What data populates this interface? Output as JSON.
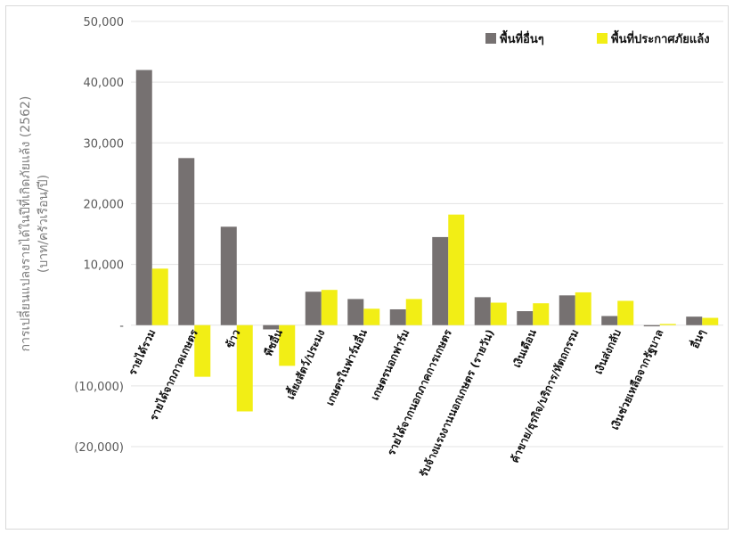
{
  "chart_data": {
    "type": "bar",
    "title": "",
    "ylabel": "การเปลี่ยนแปลงรายได้ในปีที่เกิดภัยแล้ง (2562)",
    "ylabel2": "(บาท/ครัวเรือน/ปี)",
    "ylim": [
      -20000,
      50000
    ],
    "yticks": [
      "(20,000)",
      "(10,000)",
      "-",
      "10,000",
      "20,000",
      "30,000",
      "40,000",
      "50,000"
    ],
    "ytick_values": [
      -20000,
      -10000,
      0,
      10000,
      20000,
      30000,
      40000,
      50000
    ],
    "grid": true,
    "legend_position": "top-right",
    "categories": [
      "รายได้รวม",
      "รายได้จากภาคเกษตร",
      "ข้าว",
      "พืชอื่น",
      "เลี้ยงสัตว์/ประมง",
      "เกษตรในฟาร์มอื่น",
      "เกษตรนอกฟาร์ม",
      "รายได้จากนอกภาคการเกษตร",
      "รับจ้างแรงงานนอกเกษตร (รายวัน)",
      "เงินเดือน",
      "ค้าขาย/ธุรกิจ/บริการ/หัตถกรรม",
      "เงินส่งกลับ",
      "เงินช่วยเหลือจากรัฐบาล",
      "อื่นๆ"
    ],
    "series": [
      {
        "name": "พื้นที่อื่นๆ",
        "color": "#767171",
        "values": [
          42000,
          27500,
          16200,
          -700,
          5500,
          4300,
          2600,
          14500,
          4600,
          2300,
          4900,
          1500,
          -200,
          1400
        ]
      },
      {
        "name": "พื้นที่ประกาศภัยแล้ง",
        "color": "#f2ee15",
        "values": [
          9300,
          -8500,
          -14200,
          -6700,
          5800,
          2700,
          4300,
          18200,
          3700,
          3600,
          5400,
          4000,
          200,
          1200
        ]
      }
    ]
  }
}
